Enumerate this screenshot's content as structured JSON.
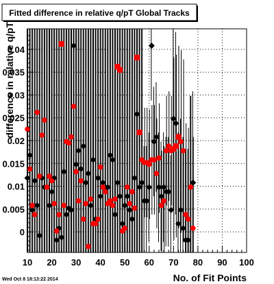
{
  "timestamp": "Wed Oct  8 18:13:22 2014",
  "chart_data": {
    "type": "scatter",
    "title": "Fitted difference in relative q/pT  Global Tracks",
    "xlabel": "No. of Fit Points",
    "ylabel": "difference in relative q/pT",
    "xlim": [
      10,
      100
    ],
    "ylim": [
      -0.0045,
      0.0445
    ],
    "grid": true,
    "x_ticks": [
      "10",
      "20",
      "30",
      "40",
      "50",
      "60",
      "70",
      "80",
      "90",
      "100"
    ],
    "y_ticks": [
      "0",
      "0.005",
      "0.01",
      "0.015",
      "0.02",
      "0.025",
      "0.03",
      "0.035",
      "0.04"
    ],
    "series": [
      {
        "color": "#000000",
        "points": [
          [
            10,
            0.0118
          ],
          [
            11,
            0.0168
          ],
          [
            12,
            0.0048
          ],
          [
            13,
            0.0112
          ],
          [
            14,
            0.0058
          ],
          [
            15,
            -0.0008
          ],
          [
            16,
            0.0118
          ],
          [
            17,
            0.0098
          ],
          [
            18,
            0.0098
          ],
          [
            19,
            0.0058
          ],
          [
            20,
            0.0088
          ],
          [
            21,
            0.0118
          ],
          [
            22,
            -0.0018
          ],
          [
            23,
            0.0008
          ],
          [
            24,
            -0.0012
          ],
          [
            25,
            0.0132
          ],
          [
            26,
            0.0038
          ],
          [
            27,
            0.0052
          ],
          [
            28,
            0.0048
          ],
          [
            29,
            0.0408
          ],
          [
            30,
            0.0148
          ],
          [
            31,
            0.0178
          ],
          [
            32,
            0.0138
          ],
          [
            33,
            0.0188
          ],
          [
            34,
            0.0108
          ],
          [
            35,
            0.0128
          ],
          [
            36,
            0.0058
          ],
          [
            37,
            0.0158
          ],
          [
            38,
            0.0028
          ],
          [
            39,
            0.0118
          ],
          [
            40,
            0.0078
          ],
          [
            41,
            0.0108
          ],
          [
            42,
            0.0098
          ],
          [
            43,
            0.0098
          ],
          [
            44,
            0.0168
          ],
          [
            45,
            0.0158
          ],
          [
            46,
            0.0038
          ],
          [
            47,
            0.0108
          ],
          [
            48,
            0.0078
          ],
          [
            49,
            0.0018
          ],
          [
            50,
            0.0058
          ],
          [
            51,
            0.0078
          ],
          [
            52,
            0.0048
          ],
          [
            53,
            0.0028
          ],
          [
            54,
            0.0118
          ],
          [
            55,
            0.0258
          ],
          [
            56,
            0.0098
          ],
          [
            57,
            0.0108
          ],
          [
            58,
            0.0068
          ],
          [
            59,
            0.0068
          ],
          [
            60,
            0.0098
          ],
          [
            61,
            0.0408
          ],
          [
            62,
            0.0198
          ],
          [
            63,
            0.0208
          ],
          [
            64,
            0.0098
          ],
          [
            65,
            0.0078
          ],
          [
            66,
            0.0098
          ],
          [
            67,
            0.0088
          ],
          [
            68,
            0.0088
          ],
          [
            69,
            0.0048
          ],
          [
            70,
            0.0248
          ],
          [
            71,
            0.0238
          ],
          [
            72,
            0.0018
          ],
          [
            73,
            0.0048
          ],
          [
            74,
            0.0008
          ],
          [
            75,
            -0.0018
          ],
          [
            76,
            -0.0018
          ],
          [
            77,
            0.0098
          ],
          [
            78,
            0.0108
          ]
        ]
      },
      {
        "color": "#ff0000",
        "points": [
          [
            10,
            0.0225
          ],
          [
            11,
            0.0138
          ],
          [
            12,
            0.0058
          ],
          [
            13,
            0.0038
          ],
          [
            14,
            0.0262
          ],
          [
            15,
            0.0122
          ],
          [
            16,
            0.0212
          ],
          [
            17,
            0.0245
          ],
          [
            18,
            0.0098
          ],
          [
            19,
            0.0122
          ],
          [
            20,
            0.0112
          ],
          [
            21,
            0.0062
          ],
          [
            22,
            0.0002
          ],
          [
            23,
            0.0038
          ],
          [
            24,
            0.0412
          ],
          [
            25,
            0.0058
          ],
          [
            26,
            0.0198
          ],
          [
            27,
            0.0195
          ],
          [
            28,
            0.0208
          ],
          [
            29,
            0.0275
          ],
          [
            30,
            0.0132
          ],
          [
            31,
            0.0068
          ],
          [
            32,
            0.0112
          ],
          [
            33,
            0.0028
          ],
          [
            34,
            0.0062
          ],
          [
            35,
            -0.0032
          ],
          [
            36,
            0.0072
          ],
          [
            37,
            0.0018
          ],
          [
            38,
            0.0018
          ],
          [
            39,
            0.0028
          ],
          [
            40,
            0.0142
          ],
          [
            41,
            0.0098
          ],
          [
            42,
            0.0088
          ],
          [
            43,
            0.0062
          ],
          [
            44,
            0.0068
          ],
          [
            45,
            0.0058
          ],
          [
            46,
            0.0072
          ],
          [
            47,
            0.0362
          ],
          [
            48,
            0.0355
          ],
          [
            49,
            0.0002
          ],
          [
            50,
            0.0008
          ],
          [
            51,
            0.0098
          ],
          [
            52,
            0.0062
          ],
          [
            53,
            0.0088
          ],
          [
            54,
            0.0052
          ],
          [
            55,
            0.0382
          ],
          [
            56,
            0.0218
          ],
          [
            57,
            0.0158
          ],
          [
            58,
            0.0152
          ],
          [
            59,
            0.0152
          ],
          [
            60,
            0.0148
          ],
          [
            61,
            0.0158
          ],
          [
            62,
            0.0158
          ],
          [
            63,
            0.0128
          ],
          [
            64,
            0.0162
          ],
          [
            65,
            0.0058
          ],
          [
            66,
            0.0068
          ],
          [
            67,
            0.0178
          ],
          [
            68,
            0.0188
          ],
          [
            69,
            0.0178
          ],
          [
            70,
            0.0182
          ],
          [
            71,
            0.0188
          ],
          [
            72,
            0.0208
          ],
          [
            73,
            0.0198
          ],
          [
            74,
            0.0178
          ],
          [
            75,
            0.0038
          ],
          [
            76,
            0.0028
          ],
          [
            77,
            0.0098
          ],
          [
            78,
            0.0008
          ]
        ]
      }
    ]
  }
}
